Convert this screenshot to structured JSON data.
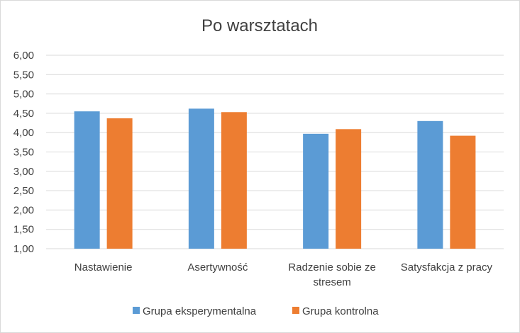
{
  "chart_data": {
    "type": "bar",
    "title": "Po warsztatach",
    "xlabel": "",
    "ylabel": "",
    "categories": [
      [
        "Nastawienie"
      ],
      [
        "Asertywność"
      ],
      [
        "Radzenie sobie ze",
        "stresem"
      ],
      [
        "Satysfakcja z pracy"
      ]
    ],
    "series": [
      {
        "name": "Grupa eksperymentalna",
        "color": "#5b9bd5",
        "values": [
          4.55,
          4.62,
          3.97,
          4.3
        ]
      },
      {
        "name": "Grupa kontrolna",
        "color": "#ed7d31",
        "values": [
          4.37,
          4.53,
          4.09,
          3.92
        ]
      }
    ],
    "ylim": [
      1.0,
      6.0
    ],
    "yticks": [
      "1,00",
      "1,50",
      "2,00",
      "2,50",
      "3,00",
      "3,50",
      "4,00",
      "4,50",
      "5,00",
      "5,50",
      "6,00"
    ],
    "grid": true,
    "legend_position": "bottom"
  }
}
